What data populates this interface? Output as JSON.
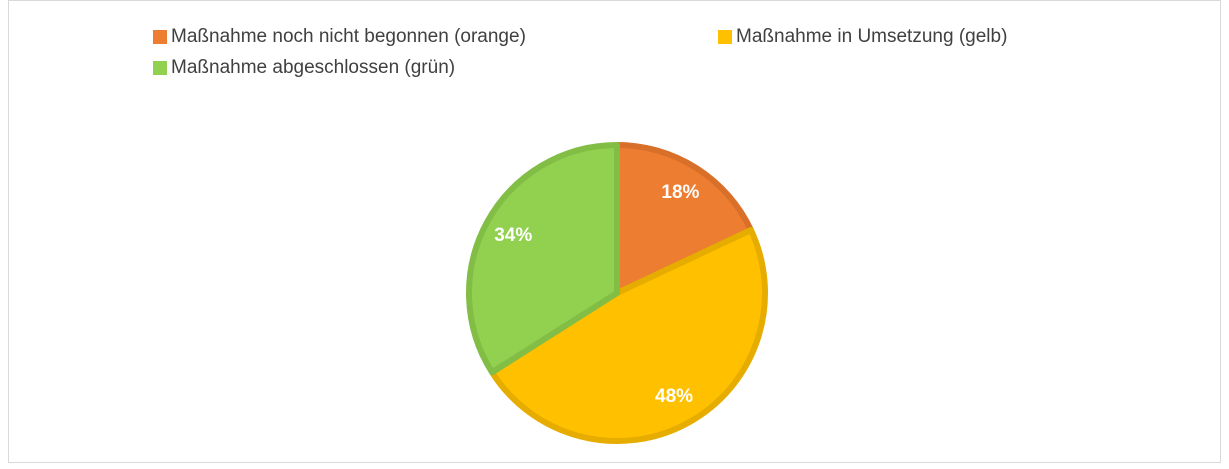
{
  "chart_data": {
    "type": "pie",
    "categories": [
      "Maßnahme noch nicht begonnen (orange)",
      "Maßnahme in Umsetzung (gelb)",
      "Maßnahme abgeschlossen (grün)"
    ],
    "values": [
      18,
      48,
      34
    ],
    "value_labels": [
      "18%",
      "48%",
      "34%"
    ],
    "colors": [
      "#ed7d31",
      "#ffc000",
      "#92d050"
    ],
    "border_colors": [
      "#d9702a",
      "#e6ad00",
      "#82bd45"
    ],
    "legend": "top"
  }
}
